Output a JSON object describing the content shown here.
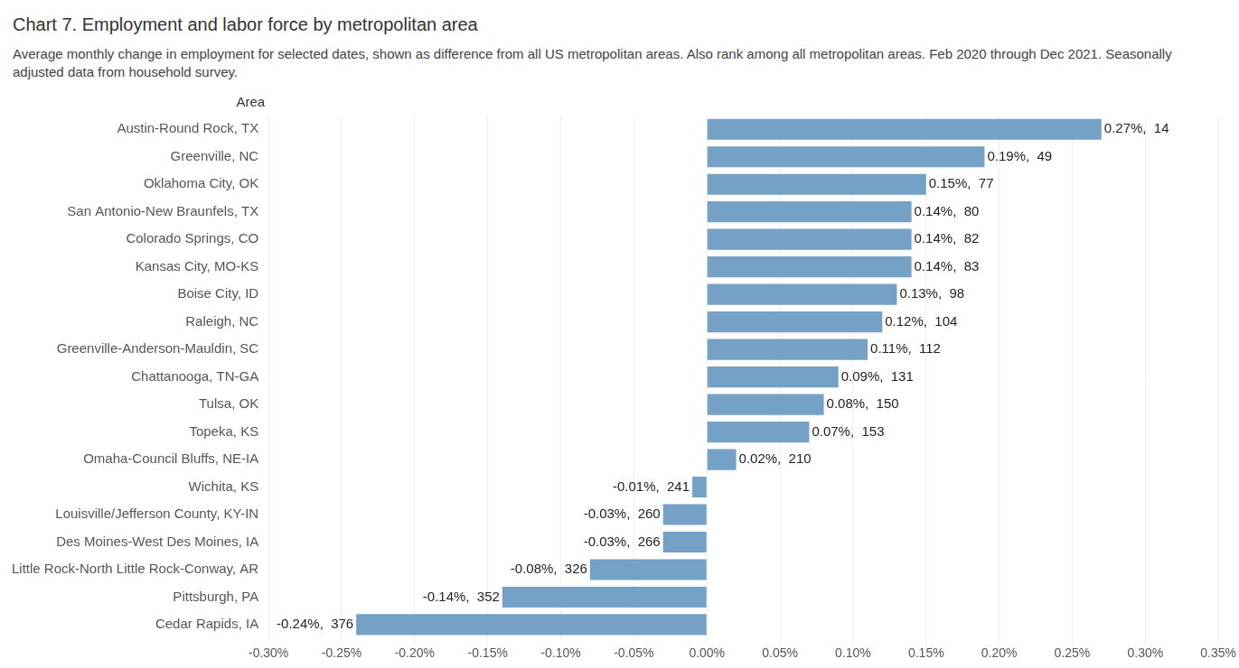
{
  "chart_data": {
    "type": "bar",
    "orientation": "horizontal",
    "title": "Chart 7. Employment and labor force by metropolitan area",
    "subtitle": "Average monthly change in employment for selected dates, shown as difference from all US metropolitan areas. Also rank among all metropolitan areas. Feb 2020 through Dec 2021. Seasonally adjusted data from household survey.",
    "ylabel": "Area",
    "categories": [
      "Austin-Round Rock, TX",
      "Greenville, NC",
      "Oklahoma City, OK",
      "San Antonio-New Braunfels, TX",
      "Colorado Springs, CO",
      "Kansas City, MO-KS",
      "Boise City, ID",
      "Raleigh, NC",
      "Greenville-Anderson-Mauldin, SC",
      "Chattanooga, TN-GA",
      "Tulsa, OK",
      "Topeka, KS",
      "Omaha-Council Bluffs, NE-IA",
      "Wichita, KS",
      "Louisville/Jefferson County, KY-IN",
      "Des Moines-West Des Moines, IA",
      "Little Rock-North Little Rock-Conway, AR",
      "Pittsburgh, PA",
      "Cedar Rapids, IA"
    ],
    "values": [
      0.27,
      0.19,
      0.15,
      0.14,
      0.14,
      0.14,
      0.13,
      0.12,
      0.11,
      0.09,
      0.08,
      0.07,
      0.02,
      -0.01,
      -0.03,
      -0.03,
      -0.08,
      -0.14,
      -0.24
    ],
    "value_labels": [
      "0.27%,  14",
      "0.19%,  49",
      "0.15%,  77",
      "0.14%,  80",
      "0.14%,  82",
      "0.14%,  83",
      "0.13%,  98",
      "0.12%,  104",
      "0.11%,  112",
      "0.09%,  131",
      "0.08%,  150",
      "0.07%,  153",
      "0.02%,  210",
      "-0.01%,  241",
      "-0.03%,  260",
      "-0.03%,  266",
      "-0.08%,  326",
      "-0.14%,  352",
      "-0.24%,  376"
    ],
    "color": "#75a1c7",
    "data_labels": true,
    "grid": true,
    "xlim": [
      -0.3,
      0.35
    ],
    "xticks": [
      {
        "value": -0.3,
        "label": "-0.30%"
      },
      {
        "value": -0.25,
        "label": "-0.25%"
      },
      {
        "value": -0.2,
        "label": "-0.20%"
      },
      {
        "value": -0.15,
        "label": "-0.15%"
      },
      {
        "value": -0.1,
        "label": "-0.10%"
      },
      {
        "value": -0.05,
        "label": "-0.05%"
      },
      {
        "value": 0,
        "label": "0.00%"
      },
      {
        "value": 0.05,
        "label": "0.05%"
      },
      {
        "value": 0.1,
        "label": "0.10%"
      },
      {
        "value": 0.15,
        "label": "0.15%"
      },
      {
        "value": 0.2,
        "label": "0.20%"
      },
      {
        "value": 0.25,
        "label": "0.25%"
      },
      {
        "value": 0.3,
        "label": "0.30%"
      },
      {
        "value": 0.35,
        "label": "0.35%"
      }
    ]
  }
}
